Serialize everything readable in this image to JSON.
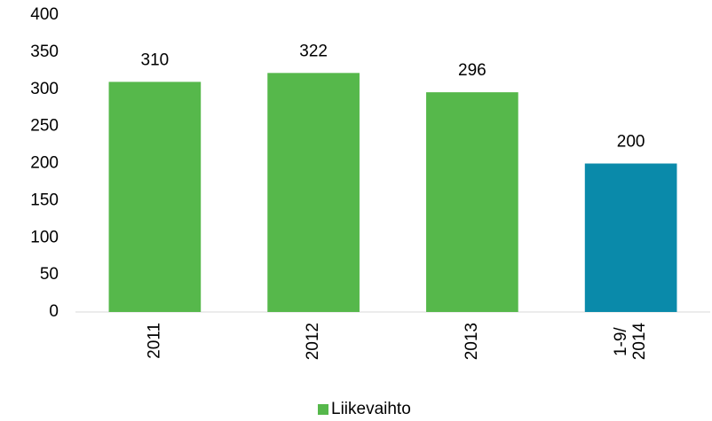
{
  "chart_data": {
    "type": "bar",
    "categories": [
      "2011",
      "2012",
      "2013",
      "1-9/ 2014"
    ],
    "series": [
      {
        "name": "Liikevaihto",
        "color": "#56b84b",
        "values": [
          310,
          322,
          296,
          200
        ]
      }
    ],
    "bar_colors": [
      "#56b84b",
      "#56b84b",
      "#56b84b",
      "#0a8aaa"
    ],
    "ylim": [
      0,
      400
    ],
    "yticks": [
      0,
      50,
      100,
      150,
      200,
      250,
      300,
      350,
      400
    ],
    "grid": false,
    "legend": "bottom"
  }
}
